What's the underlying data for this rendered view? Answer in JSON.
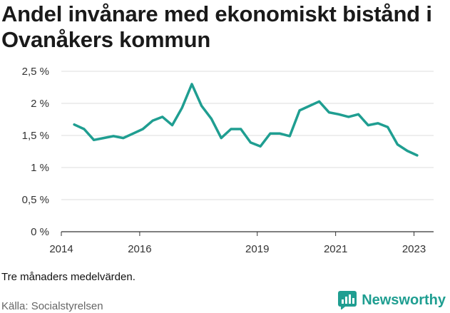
{
  "title": "Andel invånare med ekonomiskt bistånd i Ovanåkers kommun",
  "note": "Tre månaders medelvärden.",
  "source": "Källa: Socialstyrelsen",
  "brand": {
    "name": "Newsworthy",
    "icon": "newsworthy-logo-icon",
    "color": "#1f9e91"
  },
  "chart_data": {
    "type": "line",
    "title": "Andel invånare med ekonomiskt bistånd i Ovanåkers kommun",
    "xlabel": "",
    "ylabel": "",
    "ylim": [
      0,
      2.5
    ],
    "xlim": [
      2014,
      2023.5
    ],
    "grid": true,
    "y_ticks": [
      {
        "value": 0,
        "label": "0 %"
      },
      {
        "value": 0.5,
        "label": "0,5 %"
      },
      {
        "value": 1,
        "label": "1 %"
      },
      {
        "value": 1.5,
        "label": "1,5 %"
      },
      {
        "value": 2,
        "label": "2 %"
      },
      {
        "value": 2.5,
        "label": "2,5 %"
      }
    ],
    "x_ticks": [
      {
        "value": 2014,
        "label": "2014"
      },
      {
        "value": 2016,
        "label": "2016"
      },
      {
        "value": 2019,
        "label": "2019"
      },
      {
        "value": 2021,
        "label": "2021"
      },
      {
        "value": 2023,
        "label": "2023"
      }
    ],
    "series": [
      {
        "name": "Andel invånare med ekonomiskt bistånd",
        "color": "#1f9e91",
        "x": [
          2014.33,
          2014.58,
          2014.83,
          2015.08,
          2015.33,
          2015.58,
          2015.83,
          2016.08,
          2016.33,
          2016.58,
          2016.83,
          2017.08,
          2017.33,
          2017.58,
          2017.83,
          2018.08,
          2018.33,
          2018.58,
          2018.83,
          2019.08,
          2019.33,
          2019.58,
          2019.83,
          2020.08,
          2020.33,
          2020.58,
          2020.83,
          2021.08,
          2021.33,
          2021.58,
          2021.83,
          2022.08,
          2022.33,
          2022.58,
          2022.83,
          2023.08
        ],
        "values": [
          1.67,
          1.6,
          1.43,
          1.46,
          1.49,
          1.46,
          1.53,
          1.6,
          1.73,
          1.79,
          1.66,
          1.93,
          2.3,
          1.96,
          1.76,
          1.46,
          1.6,
          1.6,
          1.39,
          1.33,
          1.53,
          1.53,
          1.49,
          1.89,
          1.96,
          2.03,
          1.86,
          1.83,
          1.79,
          1.83,
          1.66,
          1.69,
          1.63,
          1.36,
          1.26,
          1.19
        ]
      }
    ]
  }
}
